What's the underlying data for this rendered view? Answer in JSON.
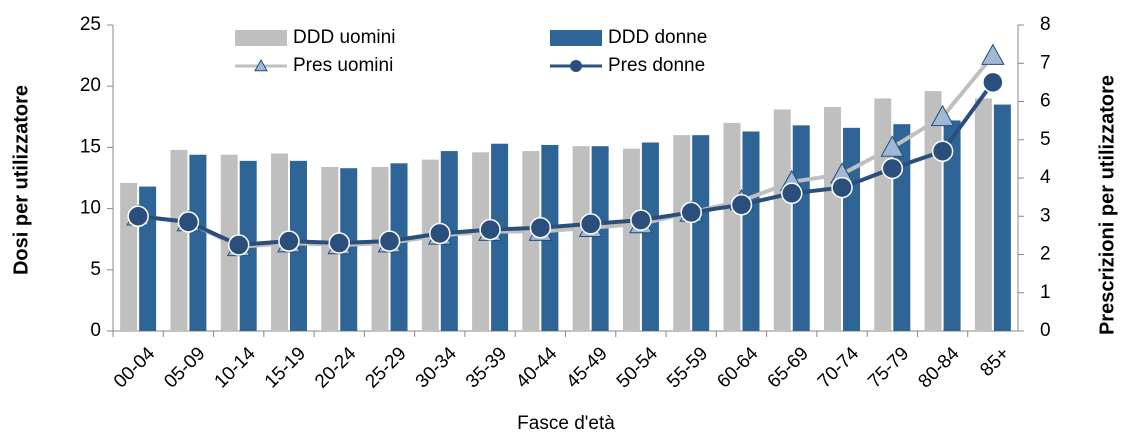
{
  "chart_data": {
    "type": "bar",
    "x_label": "Fasce d'età",
    "y_label": "Dosi per utilizzatore",
    "y2_label": "Prescrizioni per utilizzatore",
    "categories": [
      "00-04",
      "05-09",
      "10-14",
      "15-19",
      "20-24",
      "25-29",
      "30-34",
      "35-39",
      "40-44",
      "45-49",
      "50-54",
      "55-59",
      "60-64",
      "65-69",
      "70-74",
      "75-79",
      "80-84",
      "85+"
    ],
    "ylim": [
      0,
      25
    ],
    "yticks": [
      0,
      5,
      10,
      15,
      20,
      25
    ],
    "y2lim": [
      0,
      8
    ],
    "y2ticks": [
      0,
      1,
      2,
      3,
      4,
      5,
      6,
      7,
      8
    ],
    "series": [
      {
        "name": "DDD uomini",
        "type": "bar",
        "color": "#bfbfbf",
        "values": [
          12.1,
          14.8,
          14.4,
          14.5,
          13.4,
          13.4,
          14.0,
          14.6,
          14.7,
          15.1,
          14.9,
          16.0,
          17.0,
          18.1,
          18.3,
          19.0,
          19.6,
          19.0
        ]
      },
      {
        "name": "DDD donne",
        "type": "bar",
        "color": "#2e6496",
        "values": [
          11.8,
          14.4,
          13.9,
          13.9,
          13.3,
          13.7,
          14.7,
          15.3,
          15.2,
          15.1,
          15.4,
          16.0,
          16.3,
          16.8,
          16.6,
          16.9,
          17.2,
          18.5
        ]
      },
      {
        "name": "Pres uomini",
        "type": "line",
        "axis": "y2",
        "color": "#bfbfbf",
        "marker": "triangle",
        "marker_color": "#9fb8d3",
        "values": [
          3.0,
          2.85,
          2.2,
          2.3,
          2.25,
          2.3,
          2.5,
          2.6,
          2.6,
          2.7,
          2.8,
          3.1,
          3.4,
          3.9,
          4.1,
          4.8,
          5.6,
          7.2
        ]
      },
      {
        "name": "Pres donne",
        "type": "line",
        "axis": "y2",
        "color": "#2b4f7c",
        "marker": "circle",
        "marker_color": "#2b4f7c",
        "values": [
          3.0,
          2.85,
          2.25,
          2.35,
          2.3,
          2.35,
          2.55,
          2.65,
          2.7,
          2.8,
          2.9,
          3.1,
          3.3,
          3.6,
          3.75,
          4.25,
          4.7,
          6.5
        ]
      }
    ]
  }
}
